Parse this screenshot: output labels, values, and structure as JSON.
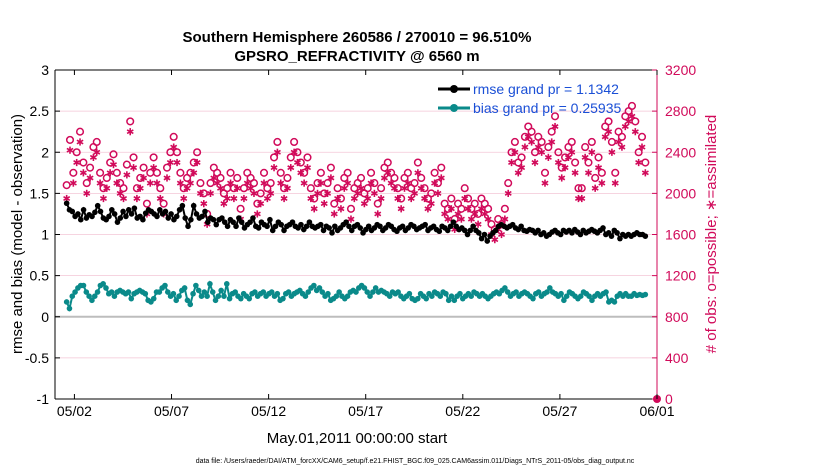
{
  "chart_data": {
    "type": "line",
    "title_line1": "Southern Hemisphere 260586 / 270010 = 96.510%",
    "title_line2": "GPSRO_REFRACTIVITY @ 6560 m",
    "xlabel": "May.01,2011 00:00:00 start",
    "ylabel_left": "rmse and bias (model - observation)",
    "ylabel_right": "# of obs: o=possible; ∗=assimilated",
    "x_ticks": [
      "05/02",
      "05/07",
      "05/12",
      "05/17",
      "05/22",
      "05/27",
      "06/01"
    ],
    "y_left_ticks": [
      "3",
      "2.5",
      "2",
      "1.5",
      "1",
      "0.5",
      "0",
      "-0.5",
      "-1"
    ],
    "y_right_ticks": [
      "3200",
      "2800",
      "2400",
      "2000",
      "1600",
      "1200",
      "800",
      "400",
      "0"
    ],
    "xlim": [
      0.5,
      31.5
    ],
    "ylim_left": [
      -1,
      3
    ],
    "ylim_right": [
      0,
      3200
    ],
    "legend_location": "top-right",
    "footer": "data file: /Users/raeder/DAI/ATM_forcXX/CAM6_setup/f.e21.FHIST_BGC.f09_025.CAM6assim.011/Diags_NTrS_2011-05/obs_diag_output.nc",
    "series": [
      {
        "name": "rmse",
        "legend": "rmse grand pr = 1.1342",
        "color": "#000000",
        "marker": "circle-filled",
        "axis": "left",
        "values": [
          1.38,
          1.3,
          1.28,
          1.22,
          1.25,
          1.18,
          1.3,
          1.2,
          1.24,
          1.22,
          1.27,
          1.35,
          1.28,
          1.2,
          1.18,
          1.22,
          1.3,
          1.25,
          1.15,
          1.2,
          1.28,
          1.22,
          1.3,
          1.25,
          1.32,
          1.2,
          1.22,
          1.18,
          1.26,
          1.3,
          1.28,
          1.25,
          1.22,
          1.3,
          1.25,
          1.28,
          1.2,
          1.25,
          1.18,
          1.22,
          1.3,
          1.35,
          1.2,
          1.1,
          1.18,
          1.35,
          1.25,
          1.2,
          1.22,
          1.28,
          1.15,
          1.2,
          1.18,
          1.12,
          1.18,
          1.2,
          1.15,
          1.1,
          1.18,
          1.15,
          1.1,
          1.2,
          1.15,
          1.08,
          1.12,
          1.15,
          1.2,
          1.1,
          1.08,
          1.15,
          1.12,
          1.1,
          1.18,
          1.05,
          1.1,
          1.15,
          1.12,
          1.05,
          1.1,
          1.12,
          1.15,
          1.1,
          1.08,
          1.12,
          1.06,
          1.1,
          1.15,
          1.1,
          1.08,
          1.1,
          1.12,
          1.05,
          1.1,
          1.08,
          1.02,
          1.1,
          1.05,
          1.08,
          1.12,
          1.15,
          1.1,
          1.05,
          1.1,
          1.12,
          1.08,
          1.02,
          1.06,
          1.1,
          1.05,
          1.08,
          1.12,
          1.1,
          1.05,
          1.08,
          1.12,
          1.1,
          1.06,
          1.04,
          1.08,
          1.1,
          1.05,
          1.08,
          1.12,
          1.1,
          1.06,
          1.08,
          1.1,
          1.12,
          1.05,
          1.08,
          1.1,
          1.06,
          1.04,
          1.1,
          1.08,
          1.05,
          1.1,
          1.15,
          1.1,
          1.06,
          1.08,
          1.05,
          1.0,
          1.05,
          1.1,
          1.05,
          1.02,
          0.95,
          1.0,
          0.92,
          0.98,
          1.02,
          1.05,
          1.1,
          1.12,
          1.1,
          1.08,
          1.1,
          1.12,
          1.08,
          1.06,
          1.1,
          1.05,
          1.04,
          1.06,
          1.05,
          1.02,
          1.05,
          1.0,
          1.02,
          0.98,
          1.0,
          1.03,
          1.05,
          1.02,
          1.0,
          1.05,
          1.03,
          1.05,
          1.02,
          1.06,
          1.03,
          1.0,
          1.05,
          1.02,
          1.04,
          1.06,
          1.04,
          1.02,
          1.05,
          1.08,
          1.0,
          1.02,
          0.98,
          1.05,
          1.02,
          0.95,
          1.0,
          0.98,
          1.0,
          0.98,
          1.0,
          1.02,
          1.0,
          1.0,
          0.98
        ]
      },
      {
        "name": "bias",
        "legend": "bias grand pr = 0.25935",
        "color": "#0a8a8a",
        "marker": "circle-filled",
        "axis": "left",
        "values": [
          0.18,
          0.1,
          0.25,
          0.3,
          0.35,
          0.38,
          0.38,
          0.3,
          0.25,
          0.2,
          0.25,
          0.3,
          0.38,
          0.4,
          0.35,
          0.28,
          0.3,
          0.25,
          0.3,
          0.32,
          0.3,
          0.28,
          0.3,
          0.22,
          0.28,
          0.3,
          0.32,
          0.3,
          0.28,
          0.2,
          0.18,
          0.22,
          0.3,
          0.3,
          0.35,
          0.38,
          0.3,
          0.25,
          0.28,
          0.2,
          0.25,
          0.32,
          0.35,
          0.2,
          0.15,
          0.28,
          0.38,
          0.32,
          0.25,
          0.3,
          0.25,
          0.4,
          0.3,
          0.2,
          0.25,
          0.32,
          0.25,
          0.4,
          0.22,
          0.28,
          0.3,
          0.25,
          0.22,
          0.28,
          0.25,
          0.22,
          0.28,
          0.3,
          0.25,
          0.28,
          0.3,
          0.25,
          0.28,
          0.3,
          0.25,
          0.28,
          0.2,
          0.22,
          0.28,
          0.3,
          0.25,
          0.28,
          0.3,
          0.32,
          0.28,
          0.25,
          0.3,
          0.35,
          0.38,
          0.32,
          0.35,
          0.3,
          0.25,
          0.28,
          0.2,
          0.22,
          0.25,
          0.3,
          0.25,
          0.22,
          0.25,
          0.3,
          0.32,
          0.3,
          0.35,
          0.38,
          0.35,
          0.3,
          0.25,
          0.3,
          0.35,
          0.3,
          0.32,
          0.3,
          0.28,
          0.25,
          0.3,
          0.28,
          0.3,
          0.25,
          0.22,
          0.25,
          0.28,
          0.22,
          0.2,
          0.22,
          0.28,
          0.25,
          0.22,
          0.28,
          0.25,
          0.3,
          0.28,
          0.25,
          0.3,
          0.28,
          0.2,
          0.25,
          0.2,
          0.25,
          0.28,
          0.22,
          0.25,
          0.28,
          0.25,
          0.3,
          0.28,
          0.25,
          0.28,
          0.25,
          0.22,
          0.25,
          0.28,
          0.3,
          0.28,
          0.32,
          0.35,
          0.3,
          0.25,
          0.28,
          0.3,
          0.25,
          0.28,
          0.3,
          0.28,
          0.25,
          0.22,
          0.28,
          0.3,
          0.25,
          0.28,
          0.3,
          0.35,
          0.3,
          0.28,
          0.25,
          0.28,
          0.2,
          0.25,
          0.3,
          0.28,
          0.25,
          0.22,
          0.25,
          0.3,
          0.28,
          0.25,
          0.2,
          0.25,
          0.28,
          0.25,
          0.28,
          0.3,
          0.18,
          0.2,
          0.18,
          0.25,
          0.28,
          0.25,
          0.28,
          0.25,
          0.25,
          0.28,
          0.26,
          0.27,
          0.26,
          0.27
        ]
      },
      {
        "name": "obs_possible",
        "legend": "",
        "color": "#d10a5a",
        "marker": "open-circle",
        "axis": "right",
        "values": [
          2080,
          2520,
          2200,
          2400,
          2600,
          2300,
          2100,
          2250,
          2450,
          2500,
          2200,
          2050,
          2150,
          2300,
          2380,
          2200,
          2100,
          2050,
          2280,
          2700,
          2350,
          2050,
          2150,
          2250,
          1900,
          2200,
          2350,
          2200,
          2050,
          1900,
          2250,
          2400,
          2550,
          2400,
          2200,
          2050,
          2150,
          2200,
          2300,
          2400,
          2100,
          2000,
          1800,
          2100,
          2250,
          2200,
          2150,
          2000,
          2050,
          2200,
          2050,
          2150,
          1850,
          2050,
          2200,
          2150,
          2100,
          1900,
          2000,
          2200,
          2050,
          2100,
          2350,
          2500,
          2200,
          2050,
          2150,
          2350,
          2500,
          2400,
          2300,
          2200,
          2350,
          2050,
          1950,
          2100,
          2200,
          2000,
          2100,
          2250,
          1900,
          2050,
          1950,
          2150,
          2200,
          1850,
          2050,
          2100,
          2150,
          2000,
          2050,
          2200,
          2100,
          1900,
          2050,
          2250,
          2300,
          2200,
          2150,
          2050,
          1950,
          2150,
          2200,
          2050,
          2100,
          2300,
          2150,
          2050,
          1950,
          2000,
          2200,
          2100,
          2250,
          1900,
          1850,
          1950,
          1750,
          1900,
          1850,
          2050,
          1950,
          1850,
          1900,
          1800,
          1950,
          1900,
          1850,
          1700,
          1650,
          1750,
          1700,
          1850,
          2100,
          2400,
          2500,
          2300,
          2350,
          2550,
          2650,
          2600,
          2400,
          2550,
          2500,
          2200,
          2450,
          2600,
          2750,
          2400,
          2250,
          2350,
          2450,
          2500,
          2300,
          2050,
          2050,
          2450,
          2300,
          2500,
          2150,
          2350,
          2200,
          2650,
          2700,
          2500,
          2200,
          2600,
          2550,
          2750,
          2800,
          2850,
          2700,
          2400,
          2550,
          2300
        ]
      },
      {
        "name": "obs_assimilated",
        "legend": "",
        "color": "#d10a5a",
        "marker": "asterisk",
        "axis": "right",
        "values": [
          1950,
          2420,
          2100,
          2300,
          2500,
          2200,
          2000,
          2150,
          2350,
          2400,
          2100,
          1950,
          2050,
          2200,
          2280,
          2100,
          2000,
          1950,
          2180,
          2600,
          2250,
          1950,
          2050,
          2150,
          1800,
          2100,
          2250,
          2100,
          1950,
          1800,
          2150,
          2300,
          2450,
          2300,
          2100,
          1950,
          2050,
          2100,
          2200,
          2300,
          2000,
          1900,
          1700,
          2000,
          2150,
          2100,
          2050,
          1900,
          1950,
          2100,
          1950,
          2050,
          1750,
          1950,
          2100,
          2050,
          2000,
          1800,
          1900,
          2100,
          1950,
          2000,
          2250,
          2400,
          2100,
          1950,
          2050,
          2250,
          2400,
          2300,
          2200,
          2100,
          2250,
          1950,
          1850,
          2000,
          2100,
          1900,
          2000,
          2150,
          1800,
          1950,
          1850,
          2050,
          2100,
          1750,
          1950,
          2000,
          2050,
          1900,
          1950,
          2100,
          2000,
          1800,
          1950,
          2150,
          2200,
          2100,
          2050,
          1950,
          1850,
          2050,
          2100,
          1950,
          2000,
          2200,
          2050,
          1950,
          1850,
          1900,
          2100,
          2000,
          2150,
          1800,
          1750,
          1850,
          1650,
          1800,
          1750,
          1950,
          1850,
          1750,
          1800,
          1700,
          1850,
          1800,
          1750,
          1600,
          1550,
          1650,
          1600,
          1750,
          2000,
          2300,
          2400,
          2200,
          2250,
          2450,
          2550,
          2500,
          2300,
          2450,
          2400,
          2100,
          2350,
          2500,
          2650,
          2300,
          2150,
          2250,
          2350,
          2400,
          2200,
          1950,
          1950,
          2350,
          2200,
          2400,
          2050,
          2250,
          2100,
          2550,
          2600,
          2400,
          2100,
          2500,
          2450,
          2650,
          2700,
          2750,
          2600,
          2300,
          2450,
          2200
        ]
      }
    ],
    "zero_line": 0
  }
}
